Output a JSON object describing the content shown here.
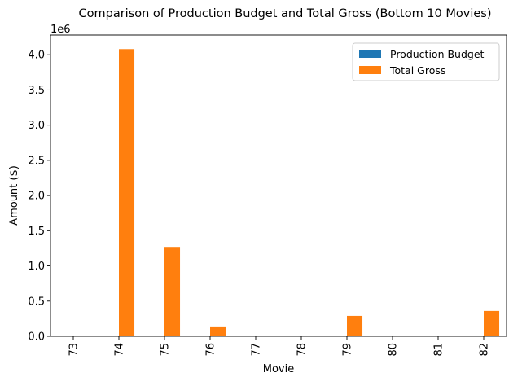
{
  "chart_data": {
    "type": "bar",
    "title": "Comparison of Production Budget and Total Gross (Bottom 10 Movies)",
    "xlabel": "Movie",
    "ylabel": "Amount ($)",
    "y_offset_text": "1e6",
    "categories": [
      "73",
      "74",
      "75",
      "76",
      "77",
      "78",
      "79",
      "80",
      "81",
      "82"
    ],
    "series": [
      {
        "name": "Production Budget",
        "color": "#1f77b4",
        "values": [
          10000,
          10000,
          10000,
          10000,
          10000,
          10000,
          10000,
          0,
          0,
          0
        ]
      },
      {
        "name": "Total Gross",
        "color": "#ff7f0e",
        "values": [
          10000,
          4080000,
          1270000,
          140000,
          0,
          0,
          290000,
          0,
          0,
          360000
        ]
      }
    ],
    "ylim": [
      0,
      4280000
    ],
    "y_ticks": [
      {
        "value": 0,
        "label": "0.0"
      },
      {
        "value": 500000,
        "label": "0.5"
      },
      {
        "value": 1000000,
        "label": "1.0"
      },
      {
        "value": 1500000,
        "label": "1.5"
      },
      {
        "value": 2000000,
        "label": "2.0"
      },
      {
        "value": 2500000,
        "label": "2.5"
      },
      {
        "value": 3000000,
        "label": "3.0"
      },
      {
        "value": 3500000,
        "label": "3.5"
      },
      {
        "value": 4000000,
        "label": "4.0"
      }
    ],
    "legend_position": "top-right",
    "grid": false
  }
}
